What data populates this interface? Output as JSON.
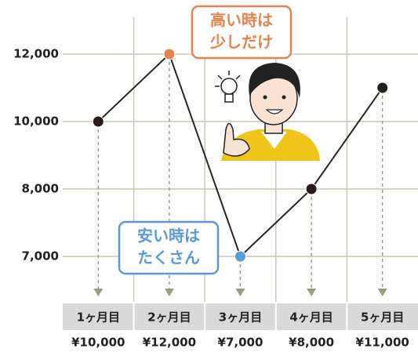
{
  "chart_data": {
    "type": "line",
    "categories": [
      "1ヶ月目",
      "2ヶ月目",
      "3ヶ月目",
      "4ヶ月目",
      "5ヶ月目"
    ],
    "values": [
      10000,
      12000,
      7000,
      8000,
      11000
    ],
    "value_labels": [
      "¥10,000",
      "¥12,000",
      "¥7,000",
      "¥8,000",
      "¥11,000"
    ],
    "color": "#2b2424",
    "point_colors": [
      "#2b1a1a",
      "#e8834e",
      "#5b9bd5",
      "#2b1a1a",
      "#2b1a1a"
    ],
    "ylim": [
      7000,
      12000
    ],
    "yticks": [
      {
        "value": 7000,
        "label": "7,000"
      },
      {
        "value": 8000,
        "label": "8,000"
      },
      {
        "value": 10000,
        "label": "10,000"
      },
      {
        "value": 12000,
        "label": "12,000"
      }
    ],
    "grid": true,
    "annotations": [
      {
        "lines": [
          "高い時は",
          "少しだけ"
        ],
        "color": "#e8834e"
      },
      {
        "lines": [
          "安い時は",
          "たくさん"
        ],
        "color": "#5b9bd5"
      }
    ]
  }
}
